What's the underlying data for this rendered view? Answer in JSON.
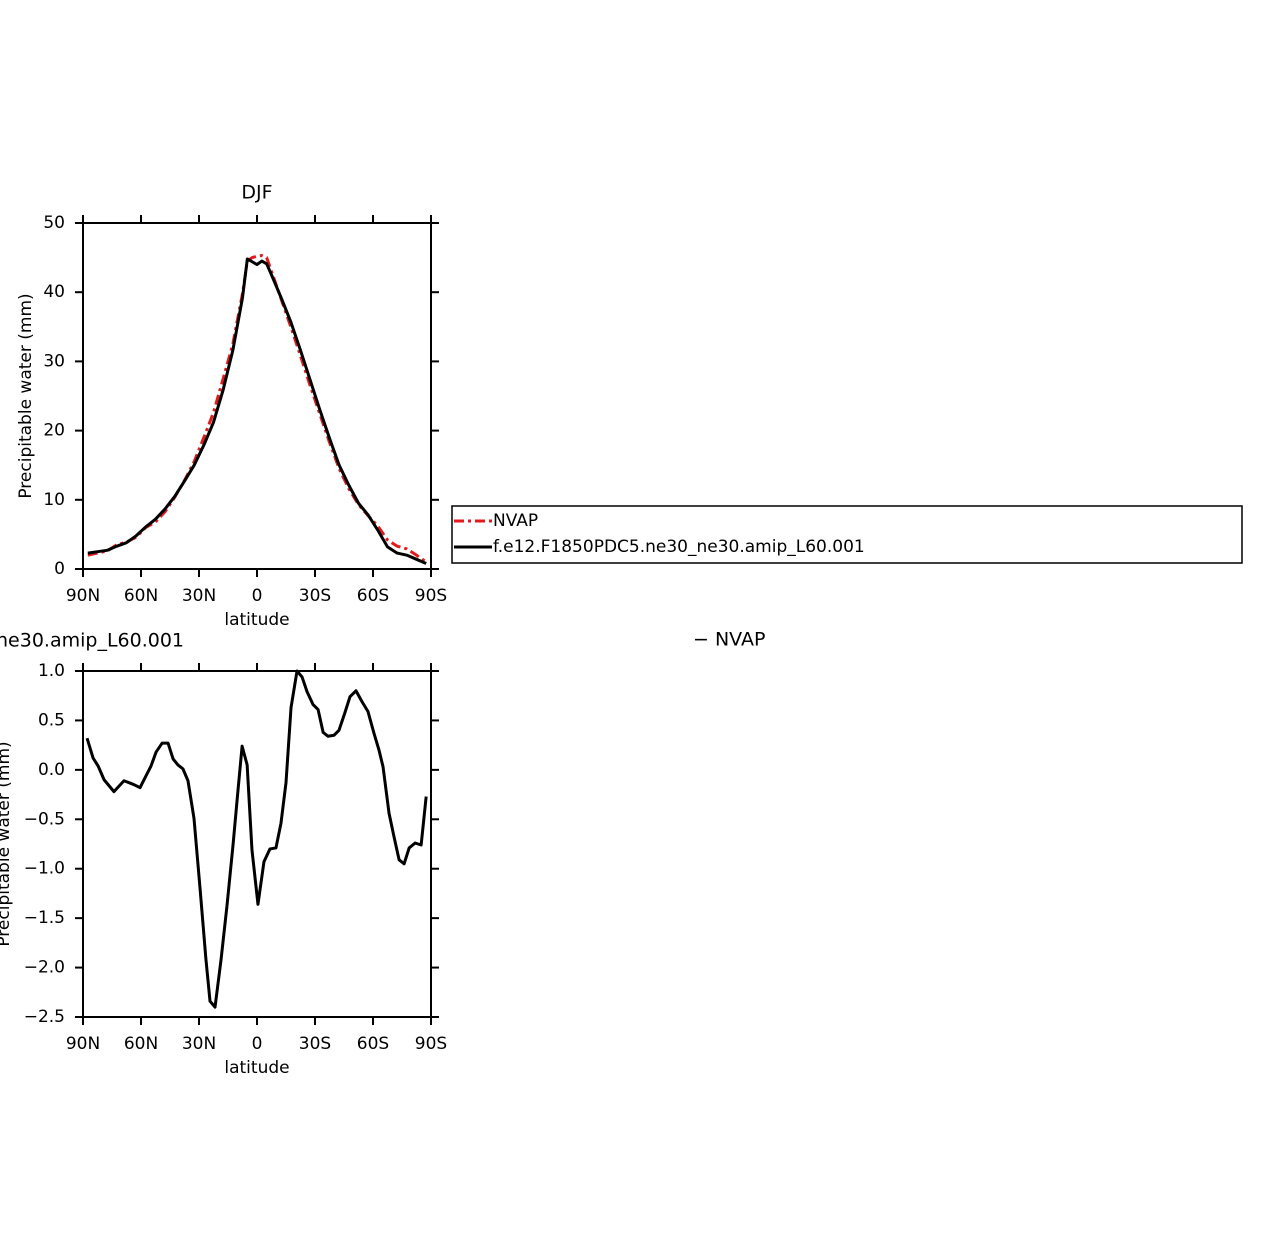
{
  "chart_data": [
    {
      "type": "line",
      "title": "DJF",
      "xlabel": "latitude",
      "ylabel": "Precipitable water (mm)",
      "x": [
        87.5,
        82.5,
        77.5,
        72.5,
        67.5,
        62.5,
        57.5,
        52.5,
        47.5,
        42.5,
        37.5,
        32.5,
        27.5,
        22.5,
        17.5,
        12.5,
        7.5,
        5,
        2.5,
        0,
        -2.5,
        -5,
        -7.5,
        -12.5,
        -17.5,
        -22.5,
        -27.5,
        -32.5,
        -37.5,
        -42.5,
        -47.5,
        -52.5,
        -57.5,
        -62.5,
        -67.5,
        -72.5,
        -77.5,
        -82.5,
        -87.5
      ],
      "series": [
        {
          "name": "NVAP",
          "color": "#e31a1c",
          "style": "dashed",
          "values": [
            2.0,
            2.3,
            2.6,
            3.5,
            3.9,
            4.6,
            6.0,
            6.8,
            8.3,
            10.4,
            12.8,
            15.5,
            19.0,
            22.6,
            27.5,
            32.5,
            39.8,
            44.5,
            45.0,
            45.2,
            45.3,
            45.0,
            43.0,
            39.0,
            35.0,
            30.8,
            26.5,
            22.4,
            18.3,
            14.5,
            11.6,
            9.3,
            7.7,
            6.2,
            4.2,
            3.3,
            2.9,
            2.0,
            1.0
          ]
        },
        {
          "name": "f.e12.F1850PDC5.ne30_ne30.amip_L60.001",
          "color": "#000000",
          "style": "solid",
          "values": [
            2.3,
            2.5,
            2.7,
            3.3,
            3.8,
            4.8,
            6.1,
            7.2,
            8.7,
            10.5,
            12.7,
            15.0,
            17.9,
            21.2,
            25.9,
            31.6,
            39.2,
            44.8,
            44.4,
            44.0,
            44.5,
            44.1,
            42.5,
            39.2,
            35.7,
            31.6,
            27.3,
            23.0,
            18.9,
            15.0,
            12.1,
            9.5,
            7.8,
            5.6,
            3.2,
            2.3,
            2.0,
            1.4,
            0.8
          ]
        }
      ],
      "xlim": [
        90,
        -90
      ],
      "xticks": [
        {
          "value": 90,
          "label": "90N"
        },
        {
          "value": 60,
          "label": "60N"
        },
        {
          "value": 30,
          "label": "30N"
        },
        0,
        {
          "value": -30,
          "label": "30S"
        },
        {
          "value": -60,
          "label": "60S"
        },
        {
          "value": -90,
          "label": "90S"
        }
      ],
      "ylim": [
        0,
        50
      ],
      "yticks": [
        0,
        10,
        20,
        30,
        40,
        50
      ],
      "legend": "right"
    },
    {
      "type": "line",
      "title": "ne30.amip_L60.001",
      "title_right": "− NVAP",
      "xlabel": "latitude",
      "ylabel": "Precipitable water (mm)",
      "x": [
        87.9,
        84.8,
        82.2,
        79.1,
        74.0,
        68.8,
        63.6,
        60.5,
        57.4,
        54.8,
        52.2,
        49.1,
        46.0,
        43.4,
        40.9,
        38.3,
        35.7,
        32.6,
        29.5,
        26.4,
        24.3,
        21.7,
        18.6,
        15.5,
        12.4,
        9.8,
        7.7,
        5.1,
        2.6,
        -0.5,
        -3.6,
        -6.7,
        -9.8,
        -12.4,
        -15.0,
        -17.6,
        -20.7,
        -23.3,
        -25.9,
        -29.0,
        -31.6,
        -34.2,
        -36.7,
        -39.8,
        -42.4,
        -45.5,
        -48.1,
        -51.2,
        -54.3,
        -57.4,
        -60.5,
        -63.1,
        -65.2,
        -68.3,
        -70.9,
        -73.5,
        -76.1,
        -78.7,
        -81.8,
        -84.9,
        -87.5
      ],
      "series": [
        {
          "color": "#000000",
          "style": "solid",
          "values": [
            0.32,
            0.12,
            0.04,
            -0.1,
            -0.22,
            -0.11,
            -0.15,
            -0.18,
            -0.06,
            0.04,
            0.18,
            0.27,
            0.27,
            0.11,
            0.05,
            0.01,
            -0.11,
            -0.49,
            -1.19,
            -1.92,
            -2.34,
            -2.4,
            -1.92,
            -1.37,
            -0.76,
            -0.2,
            0.24,
            0.05,
            -0.81,
            -1.36,
            -0.93,
            -0.8,
            -0.79,
            -0.54,
            -0.13,
            0.63,
            1.0,
            0.94,
            0.79,
            0.66,
            0.61,
            0.38,
            0.34,
            0.35,
            0.4,
            0.58,
            0.74,
            0.8,
            0.69,
            0.59,
            0.37,
            0.2,
            0.03,
            -0.44,
            -0.68,
            -0.91,
            -0.95,
            -0.79,
            -0.74,
            -0.76,
            -0.27
          ]
        }
      ],
      "xlim": [
        90,
        -90
      ],
      "xticks": [
        {
          "value": 90,
          "label": "90N"
        },
        {
          "value": 60,
          "label": "60N"
        },
        {
          "value": 30,
          "label": "30N"
        },
        0,
        {
          "value": -30,
          "label": "30S"
        },
        {
          "value": -60,
          "label": "60S"
        },
        {
          "value": -90,
          "label": "90S"
        }
      ],
      "ylim": [
        -2.5,
        1.0
      ],
      "yticks": [
        {
          "value": -2.5,
          "label": "−2.5"
        },
        {
          "value": -2,
          "label": "−2.0"
        },
        {
          "value": -1.5,
          "label": "−1.5"
        },
        {
          "value": -1,
          "label": "−1.0"
        },
        {
          "value": -0.5,
          "label": "−0.5"
        },
        {
          "value": 0,
          "label": "0.0"
        },
        {
          "value": 0.5,
          "label": "0.5"
        },
        {
          "value": 1,
          "label": "1.0"
        }
      ]
    }
  ]
}
